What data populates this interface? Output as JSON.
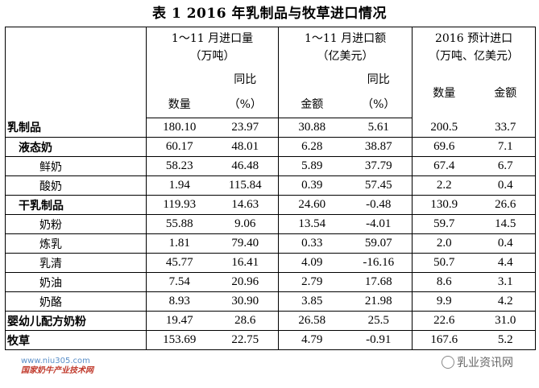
{
  "title": "表 1    2016 年乳制品与牧草进口情况",
  "header": {
    "group1": "1～11 月进口量",
    "group1_unit": "（万吨）",
    "group2": "1～11 月进口额",
    "group2_unit": "（亿美元）",
    "group3": "2016 预计进口",
    "group3_unit": "（万吨、亿美元）",
    "yoy": "同比",
    "pct": "（%）",
    "qty": "数量",
    "amount": "金额"
  },
  "rows": [
    {
      "name": "乳制品",
      "level": 0,
      "values": [
        "180.10",
        "23.97",
        "30.88",
        "5.61",
        "200.5",
        "33.7"
      ]
    },
    {
      "name": "液态奶",
      "level": 1,
      "values": [
        "60.17",
        "48.01",
        "6.28",
        "38.87",
        "69.6",
        "7.1"
      ]
    },
    {
      "name": "鲜奶",
      "level": 2,
      "values": [
        "58.23",
        "46.48",
        "5.89",
        "37.79",
        "67.4",
        "6.7"
      ]
    },
    {
      "name": "酸奶",
      "level": 2,
      "values": [
        "1.94",
        "115.84",
        "0.39",
        "57.45",
        "2.2",
        "0.4"
      ]
    },
    {
      "name": "干乳制品",
      "level": 1,
      "values": [
        "119.93",
        "14.63",
        "24.60",
        "-0.48",
        "130.9",
        "26.6"
      ]
    },
    {
      "name": "奶粉",
      "level": 2,
      "values": [
        "55.88",
        "9.06",
        "13.54",
        "-4.01",
        "59.7",
        "14.5"
      ]
    },
    {
      "name": "炼乳",
      "level": 2,
      "values": [
        "1.81",
        "79.40",
        "0.33",
        "59.07",
        "2.0",
        "0.4"
      ]
    },
    {
      "name": "乳清",
      "level": 2,
      "values": [
        "45.77",
        "16.41",
        "4.09",
        "-16.16",
        "50.7",
        "4.4"
      ]
    },
    {
      "name": "奶油",
      "level": 2,
      "values": [
        "7.54",
        "20.96",
        "2.79",
        "17.68",
        "8.6",
        "3.1"
      ]
    },
    {
      "name": "奶酪",
      "level": 2,
      "values": [
        "8.93",
        "30.90",
        "3.85",
        "21.98",
        "9.9",
        "4.2"
      ]
    },
    {
      "name": "婴幼儿配方奶粉",
      "level": 0,
      "values": [
        "19.47",
        "28.6",
        "26.58",
        "25.5",
        "22.6",
        "31.0"
      ]
    },
    {
      "name": "牧草",
      "level": 0,
      "values": [
        "153.69",
        "22.75",
        "4.79",
        "-0.91",
        "167.6",
        "5.2"
      ]
    }
  ],
  "watermark_left_url": "www.niu305.com",
  "watermark_left_text": "国家奶牛产业技术网",
  "watermark_right_text": "乳业资讯网"
}
